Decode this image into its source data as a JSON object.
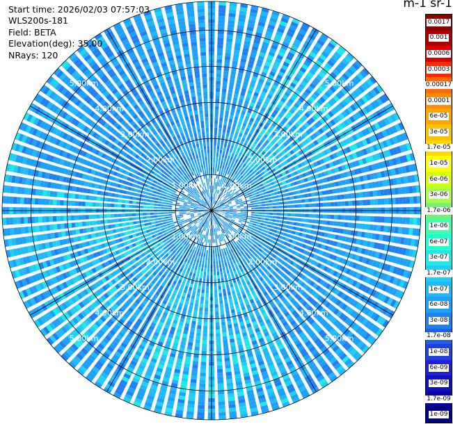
{
  "header": {
    "start_time": "Start time: 2026/02/03 07:57:03",
    "instrument": "WLS200s-181",
    "field": "Field: BETA",
    "elevation": "Elevation(deg): 35.00",
    "nrays": "NRays: 120"
  },
  "colorbar": {
    "units_label": "m-1 sr-1",
    "ticks": [
      "0.0017",
      "0.001",
      "0.0006",
      "0.0003",
      "0.00017",
      "0.0001",
      "6e-05",
      "3e-05",
      "1.7e-05",
      "1e-05",
      "6e-06",
      "3e-06",
      "1.7e-06",
      "1e-06",
      "6e-07",
      "3e-07",
      "1.7e-07",
      "1e-07",
      "6e-08",
      "3e-08",
      "1.7e-08",
      "1e-08",
      "6e-09",
      "3e-09",
      "1.7e-09",
      "1e-09"
    ],
    "colors": [
      "#8b0000",
      "#b00000",
      "#d80000",
      "#ff2a00",
      "#ff6a00",
      "#ff8c00",
      "#ffa500",
      "#ffc000",
      "#ffd700",
      "#ffff00",
      "#d8ff00",
      "#a8ff4a",
      "#78f078",
      "#40ffa8",
      "#20ffd0",
      "#20e8e8",
      "#20d0f0",
      "#20b8f8",
      "#1ea0f8",
      "#2080f0",
      "#2060e8",
      "#2040e0",
      "#2020d8",
      "#1010c0",
      "#0808a0",
      "#000080"
    ]
  },
  "chart_data": {
    "type": "heatmap",
    "projection": "polar-ppi",
    "field": "BETA",
    "units": "m-1 sr-1",
    "color_scale": "log",
    "color_range": [
      1e-09,
      0.0017
    ],
    "n_rays": 120,
    "elevation_deg": 35.0,
    "range_rings_km": [
      1.0,
      2.0,
      3.0,
      4.0,
      5.0
    ],
    "ring_labels": [
      "1.00km",
      "2.00km",
      "3.00km",
      "4.00km",
      "5.00km"
    ],
    "max_range_km": 5.8,
    "spokes_deg": [
      0,
      30,
      60,
      90,
      120,
      150,
      180,
      210,
      240,
      270,
      300,
      330
    ],
    "dominant_value_range": [
      3e-08,
      1e-07
    ],
    "enhanced_regions": [
      {
        "direction": "north-east",
        "value_approx": 1.7e-07
      },
      {
        "direction": "west-south-west",
        "value_approx": 1.7e-07
      },
      {
        "direction": "south",
        "value_approx": 1.7e-07
      }
    ]
  }
}
